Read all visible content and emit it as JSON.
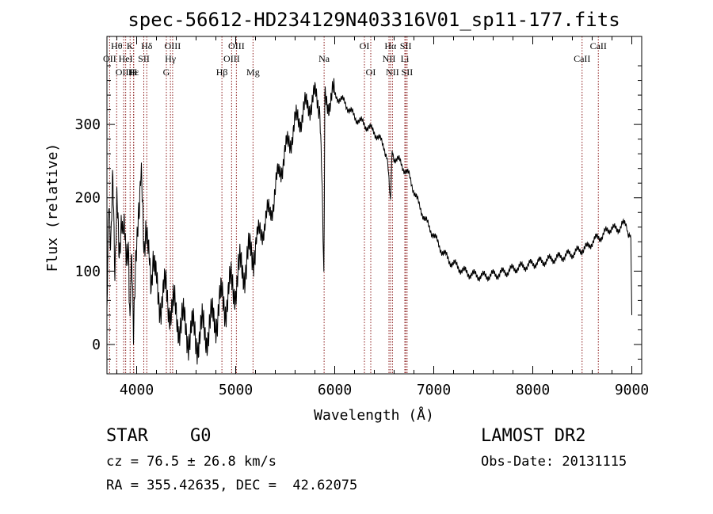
{
  "colors": {
    "axis": "#000000",
    "line_marker": "#8b1a1a",
    "spectrum": "#000000"
  },
  "chart_data": {
    "type": "line",
    "title": "spec-56612-HD234129N403316V01_sp11-177.fits",
    "xlabel": "Wavelength (Å)",
    "ylabel": "Flux (relative)",
    "xlim": [
      3700,
      9100
    ],
    "ylim": [
      -40,
      420
    ],
    "x_ticks": [
      4000,
      5000,
      6000,
      7000,
      8000,
      9000
    ],
    "y_ticks": [
      0,
      100,
      200,
      300
    ],
    "grid": false,
    "series": [
      {
        "x": [
          3700,
          3720,
          3740,
          3760,
          3780,
          3800,
          3820,
          3840,
          3860,
          3870,
          3890,
          3920,
          3933,
          3950,
          3968,
          3990,
          4020,
          4040,
          4060,
          4080,
          4100,
          4130,
          4170,
          4200,
          4250,
          4300,
          4350,
          4400,
          4450,
          4500,
          4550,
          4600,
          4650,
          4700,
          4750,
          4800,
          4850,
          4900,
          4950,
          5000,
          5050,
          5100,
          5150,
          5200,
          5250,
          5300,
          5350,
          5400,
          5450,
          5500,
          5550,
          5600,
          5650,
          5700,
          5750,
          5800,
          5850,
          5890,
          5895,
          5900,
          5950,
          6000,
          6050,
          6100,
          6150,
          6200,
          6250,
          6300,
          6350,
          6400,
          6450,
          6500,
          6540,
          6563,
          6580,
          6600,
          6650,
          6700,
          6750,
          6800,
          6850,
          6900,
          6950,
          7000,
          7050,
          7100,
          7150,
          7200,
          7250,
          7300,
          7350,
          7400,
          7450,
          7500,
          7550,
          7600,
          7650,
          7700,
          7750,
          7800,
          7850,
          7900,
          7950,
          8000,
          8050,
          8100,
          8150,
          8200,
          8250,
          8300,
          8350,
          8400,
          8450,
          8500,
          8550,
          8600,
          8650,
          8700,
          8750,
          8800,
          8850,
          8900,
          8950,
          8990,
          9000
        ],
        "y": [
          30,
          200,
          150,
          210,
          120,
          180,
          140,
          160,
          130,
          150,
          120,
          140,
          10,
          150,
          30,
          120,
          200,
          220,
          190,
          140,
          130,
          110,
          90,
          80,
          60,
          70,
          50,
          40,
          30,
          20,
          15,
          10,
          15,
          20,
          25,
          40,
          55,
          60,
          75,
          85,
          100,
          110,
          120,
          140,
          150,
          170,
          180,
          210,
          240,
          260,
          280,
          300,
          310,
          320,
          330,
          335,
          330,
          100,
          200,
          330,
          335,
          340,
          335,
          330,
          320,
          310,
          305,
          300,
          295,
          290,
          280,
          270,
          240,
          200,
          260,
          255,
          250,
          240,
          230,
          210,
          190,
          175,
          160,
          150,
          135,
          125,
          115,
          110,
          105,
          100,
          97,
          95,
          94,
          93,
          94,
          95,
          96,
          98,
          100,
          103,
          105,
          106,
          108,
          110,
          112,
          113,
          115,
          117,
          118,
          120,
          122,
          124,
          127,
          130,
          132,
          140,
          145,
          148,
          155,
          160,
          155,
          165,
          160,
          140,
          40
        ]
      }
    ],
    "line_markers": [
      {
        "name": "OII",
        "wavelength": 3727,
        "row": 2
      },
      {
        "name": "Hθ",
        "wavelength": 3798,
        "row": 1
      },
      {
        "name": "OIII",
        "wavelength": 3869,
        "row": 3
      },
      {
        "name": "HeI",
        "wavelength": 3889,
        "row": 2
      },
      {
        "name": "K",
        "wavelength": 3934,
        "row": 1
      },
      {
        "name": "H",
        "wavelength": 3969,
        "row": 3
      },
      {
        "name": "Hε",
        "wavelength": 3970,
        "row": 3
      },
      {
        "name": "SII",
        "wavelength": 4072,
        "row": 2
      },
      {
        "name": "Hδ",
        "wavelength": 4102,
        "row": 1
      },
      {
        "name": "G",
        "wavelength": 4300,
        "row": 3
      },
      {
        "name": "Hγ",
        "wavelength": 4341,
        "row": 2
      },
      {
        "name": "OIII",
        "wavelength": 4363,
        "row": 1
      },
      {
        "name": "Hβ",
        "wavelength": 4861,
        "row": 3
      },
      {
        "name": "OIII",
        "wavelength": 4959,
        "row": 2
      },
      {
        "name": "OIII",
        "wavelength": 5007,
        "row": 1
      },
      {
        "name": "Mg",
        "wavelength": 5175,
        "row": 3
      },
      {
        "name": "Na",
        "wavelength": 5893,
        "row": 2
      },
      {
        "name": "OI",
        "wavelength": 6300,
        "row": 1
      },
      {
        "name": "OI",
        "wavelength": 6364,
        "row": 3
      },
      {
        "name": "NII",
        "wavelength": 6548,
        "row": 2
      },
      {
        "name": "Hα",
        "wavelength": 6563,
        "row": 1
      },
      {
        "name": "NII",
        "wavelength": 6583,
        "row": 3
      },
      {
        "name": "SII",
        "wavelength": 6717,
        "row": 1
      },
      {
        "name": "Li",
        "wavelength": 6708,
        "row": 2
      },
      {
        "name": "SII",
        "wavelength": 6731,
        "row": 3
      },
      {
        "name": "CaII",
        "wavelength": 8498,
        "row": 2
      },
      {
        "name": "CaII",
        "wavelength": 8662,
        "row": 1
      }
    ]
  },
  "footer": {
    "object_class": "STAR",
    "subclass": "G0",
    "survey": "LAMOST DR2",
    "cz_text": "cz = 76.5 ± 26.8 km/s",
    "obs_date_text": "Obs-Date: 20131115",
    "coords_text": "RA = 355.42635, DEC =  42.62075"
  }
}
